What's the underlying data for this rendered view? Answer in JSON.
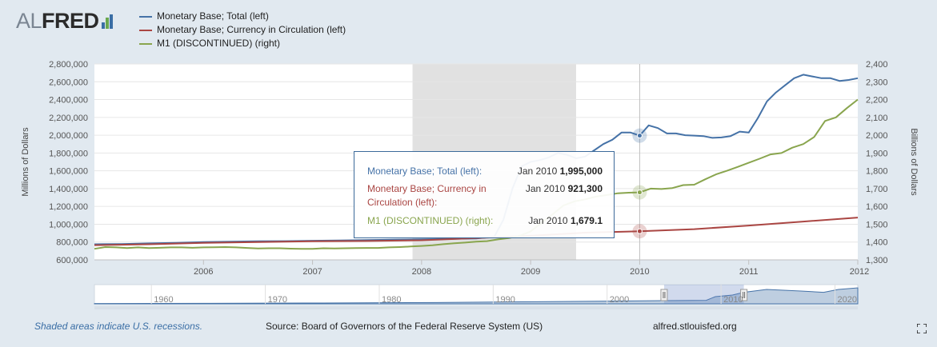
{
  "logo": {
    "text_al": "AL",
    "text_fred": "FRED",
    "bar_colors": [
      "#3a6ea5",
      "#6aa84f",
      "#3a6ea5"
    ]
  },
  "legend": [
    {
      "label": "Monetary Base; Total (left)",
      "color": "#4572a7"
    },
    {
      "label": "Monetary Base; Currency in Circulation (left)",
      "color": "#aa4643"
    },
    {
      "label": "M1 (DISCONTINUED) (right)",
      "color": "#89a54e"
    }
  ],
  "chart_data": {
    "type": "line",
    "xlim": [
      2005.0,
      2012.0
    ],
    "x_ticks": [
      2006,
      2007,
      2008,
      2009,
      2010,
      2011,
      2012
    ],
    "x_tick_labels": [
      "2006",
      "2007",
      "2008",
      "2009",
      "2010",
      "2011",
      "2012"
    ],
    "y_left": {
      "label": "Millions of Dollars",
      "lim": [
        600000,
        2800000
      ],
      "ticks": [
        600000,
        800000,
        1000000,
        1200000,
        1400000,
        1600000,
        1800000,
        2000000,
        2200000,
        2400000,
        2600000,
        2800000
      ],
      "tick_labels": [
        "600,000",
        "800,000",
        "1,000,000",
        "1,200,000",
        "1,400,000",
        "1,600,000",
        "1,800,000",
        "2,000,000",
        "2,200,000",
        "2,400,000",
        "2,600,000",
        "2,800,000"
      ]
    },
    "y_right": {
      "label": "Billions of Dollars",
      "lim": [
        1300,
        2400
      ],
      "ticks": [
        1300,
        1400,
        1500,
        1600,
        1700,
        1800,
        1900,
        2000,
        2100,
        2200,
        2300,
        2400
      ],
      "tick_labels": [
        "1,300",
        "1,400",
        "1,500",
        "1,600",
        "1,700",
        "1,800",
        "1,900",
        "2,000",
        "2,100",
        "2,200",
        "2,300",
        "2,400"
      ]
    },
    "recession": {
      "start": 2007.917,
      "end": 2009.417,
      "color": "#e1e1e1"
    },
    "cursor_x": 2010.0,
    "series": [
      {
        "name": "Monetary Base; Total (left)",
        "axis": "left",
        "color": "#4572a7",
        "x": [
          2005.0,
          2005.25,
          2005.5,
          2005.75,
          2006.0,
          2006.25,
          2006.5,
          2006.75,
          2007.0,
          2007.25,
          2007.5,
          2007.75,
          2008.0,
          2008.25,
          2008.5,
          2008.667,
          2008.75,
          2008.833,
          2008.917,
          2009.0,
          2009.083,
          2009.167,
          2009.25,
          2009.333,
          2009.417,
          2009.5,
          2009.583,
          2009.667,
          2009.75,
          2009.833,
          2009.917,
          2010.0,
          2010.083,
          2010.167,
          2010.25,
          2010.333,
          2010.417,
          2010.5,
          2010.583,
          2010.667,
          2010.75,
          2010.833,
          2010.917,
          2011.0,
          2011.083,
          2011.167,
          2011.25,
          2011.333,
          2011.417,
          2011.5,
          2011.583,
          2011.667,
          2011.75,
          2011.833,
          2011.917,
          2012.0
        ],
        "y": [
          775000,
          778000,
          785000,
          790000,
          800000,
          805000,
          808000,
          810000,
          815000,
          818000,
          822000,
          826000,
          830000,
          835000,
          840000,
          860000,
          1050000,
          1400000,
          1650000,
          1700000,
          1720000,
          1750000,
          1800000,
          1780000,
          1740000,
          1760000,
          1830000,
          1900000,
          1950000,
          2030000,
          2030000,
          1995000,
          2110000,
          2080000,
          2020000,
          2020000,
          2000000,
          1995000,
          1990000,
          1970000,
          1975000,
          1990000,
          2040000,
          2030000,
          2190000,
          2380000,
          2480000,
          2560000,
          2640000,
          2680000,
          2660000,
          2640000,
          2640000,
          2610000,
          2620000,
          2640000
        ]
      },
      {
        "name": "Monetary Base; Currency in Circulation (left)",
        "axis": "left",
        "color": "#aa4643",
        "x": [
          2005.0,
          2005.5,
          2006.0,
          2006.5,
          2007.0,
          2007.5,
          2008.0,
          2008.5,
          2009.0,
          2009.5,
          2010.0,
          2010.5,
          2011.0,
          2011.5,
          2012.0
        ],
        "y": [
          765000,
          775000,
          790000,
          800000,
          808000,
          812000,
          820000,
          845000,
          870000,
          905000,
          921300,
          945000,
          985000,
          1030000,
          1075000
        ]
      },
      {
        "name": "M1 (DISCONTINUED) (right)",
        "axis": "right",
        "color": "#89a54e",
        "x": [
          2005.0,
          2005.1,
          2005.2,
          2005.3,
          2005.4,
          2005.5,
          2005.6,
          2005.7,
          2005.8,
          2005.9,
          2006.0,
          2006.1,
          2006.2,
          2006.3,
          2006.4,
          2006.5,
          2006.6,
          2006.7,
          2006.8,
          2006.9,
          2007.0,
          2007.1,
          2007.2,
          2007.3,
          2007.4,
          2007.5,
          2007.6,
          2007.7,
          2007.8,
          2007.9,
          2008.0,
          2008.1,
          2008.2,
          2008.3,
          2008.4,
          2008.5,
          2008.6,
          2008.7,
          2008.8,
          2008.9,
          2009.0,
          2009.1,
          2009.2,
          2009.3,
          2009.4,
          2009.5,
          2009.6,
          2009.7,
          2009.8,
          2009.9,
          2010.0,
          2010.1,
          2010.2,
          2010.3,
          2010.4,
          2010.5,
          2010.6,
          2010.7,
          2010.8,
          2010.9,
          2011.0,
          2011.1,
          2011.2,
          2011.3,
          2011.4,
          2011.5,
          2011.6,
          2011.7,
          2011.8,
          2011.9,
          2012.0
        ],
        "y": [
          1362,
          1372,
          1370,
          1366,
          1370,
          1366,
          1368,
          1370,
          1370,
          1368,
          1370,
          1371,
          1372,
          1370,
          1367,
          1364,
          1365,
          1365,
          1363,
          1362,
          1362,
          1365,
          1364,
          1365,
          1366,
          1367,
          1367,
          1370,
          1372,
          1375,
          1378,
          1382,
          1388,
          1393,
          1397,
          1402,
          1405,
          1415,
          1422,
          1435,
          1460,
          1508,
          1555,
          1605,
          1628,
          1640,
          1655,
          1664,
          1674,
          1677,
          1679.1,
          1700,
          1698,
          1703,
          1720,
          1722,
          1752,
          1780,
          1800,
          1822,
          1845,
          1868,
          1892,
          1900,
          1930,
          1950,
          1990,
          2080,
          2100,
          2152,
          2200
        ]
      }
    ],
    "tooltip": {
      "rows": [
        {
          "name": "Monetary Base; Total (left):",
          "date": "Jan 2010",
          "value": "1,995,000",
          "color": "#4572a7"
        },
        {
          "name": "Monetary Base; Currency in Circulation (left):",
          "date": "Jan 2010",
          "value": "921,300",
          "color": "#aa4643"
        },
        {
          "name": "M1 (DISCONTINUED) (right):",
          "date": "Jan 2010",
          "value": "1,679.1",
          "color": "#89a54e"
        }
      ]
    },
    "navigator": {
      "xlim": [
        1955,
        2022
      ],
      "tick_values": [
        1960,
        1970,
        1980,
        1990,
        2000,
        2010,
        2020
      ],
      "tick_labels": [
        "1960",
        "1970",
        "1980",
        "1990",
        "2000",
        "2010",
        "2020"
      ],
      "selection": [
        2005.0,
        2012.0
      ]
    }
  },
  "footer": {
    "recession_note": "Shaded areas indicate U.S. recessions.",
    "source": "Source: Board of Governors of the Federal Reserve System (US)",
    "url": "alfred.stlouisfed.org"
  }
}
